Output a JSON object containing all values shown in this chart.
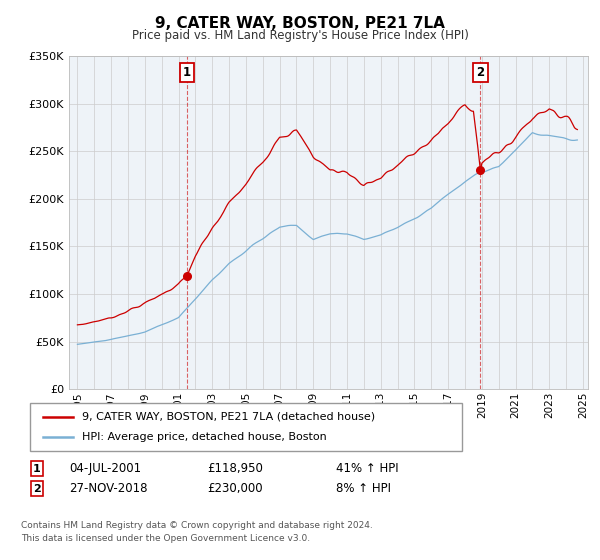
{
  "title": "9, CATER WAY, BOSTON, PE21 7LA",
  "subtitle": "Price paid vs. HM Land Registry's House Price Index (HPI)",
  "legend_line1": "9, CATER WAY, BOSTON, PE21 7LA (detached house)",
  "legend_line2": "HPI: Average price, detached house, Boston",
  "sale1_date": "04-JUL-2001",
  "sale1_price": "£118,950",
  "sale1_hpi": "41% ↑ HPI",
  "sale1_year": 2001.5,
  "sale1_value": 118950,
  "sale2_date": "27-NOV-2018",
  "sale2_price": "£230,000",
  "sale2_hpi": "8% ↑ HPI",
  "sale2_year": 2018.92,
  "sale2_value": 230000,
  "footnote1": "Contains HM Land Registry data © Crown copyright and database right 2024.",
  "footnote2": "This data is licensed under the Open Government Licence v3.0.",
  "ylim": [
    0,
    350000
  ],
  "xlim_start": 1994.5,
  "xlim_end": 2025.3,
  "property_color": "#cc0000",
  "hpi_color": "#7ab0d4",
  "grid_color": "#cccccc",
  "background_color": "#eef3f8"
}
